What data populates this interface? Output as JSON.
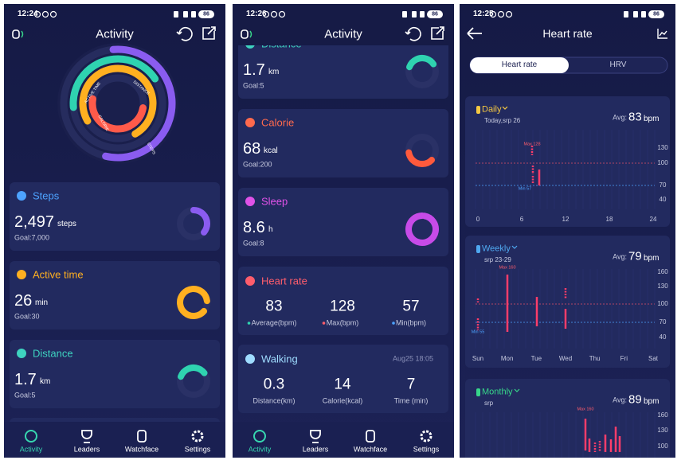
{
  "screens": [
    {
      "time": "12:24",
      "battery": "86",
      "title": "Activity",
      "rings": [
        "DISTANCE",
        "ACTIVE TIME",
        "CALORIE",
        "STEPS"
      ],
      "cards": [
        {
          "title": "Steps",
          "value": "2,497",
          "unit": "steps",
          "goal": "Goal:7,000"
        },
        {
          "title": "Active time",
          "value": "26",
          "unit": "min",
          "goal": "Goal:30"
        },
        {
          "title": "Distance",
          "value": "1.7",
          "unit": "km",
          "goal": "Goal:5"
        }
      ],
      "nav": [
        "Activity",
        "Leaders",
        "Watchface",
        "Settings"
      ]
    },
    {
      "time": "12:26",
      "battery": "86",
      "title": "Activity",
      "cards": [
        {
          "title": "Distance",
          "value": "1.7",
          "unit": "km",
          "goal": "Goal:5"
        },
        {
          "title": "Calorie",
          "value": "68",
          "unit": "kcal",
          "goal": "Goal:200"
        },
        {
          "title": "Sleep",
          "value": "8.6",
          "unit": "h",
          "goal": "Goal:8"
        }
      ],
      "heart": {
        "title": "Heart rate",
        "stats": [
          {
            "value": "83",
            "label": "Average(bpm)"
          },
          {
            "value": "128",
            "label": "Max(bpm)"
          },
          {
            "value": "57",
            "label": "Min(bpm)"
          }
        ]
      },
      "walking": {
        "title": "Walking",
        "date": "Aug25 18:05",
        "stats": [
          {
            "value": "0.3",
            "label": "Distance(km)"
          },
          {
            "value": "14",
            "label": "Calorie(kcal)"
          },
          {
            "value": "7",
            "label": "Time (min)"
          }
        ]
      },
      "nav": [
        "Activity",
        "Leaders",
        "Watchface",
        "Settings"
      ]
    },
    {
      "time": "12:25",
      "battery": "86",
      "title": "Heart rate",
      "tabs": [
        "Heart rate",
        "HRV"
      ],
      "periods": [
        {
          "name": "Daily",
          "range": "Today,srp 26",
          "avg_label": "Avg:",
          "avg": "83",
          "unit": "bpm",
          "yticks": [
            "130",
            "100",
            "70",
            "40"
          ],
          "xticks": [
            "0",
            "6",
            "12",
            "18",
            "24"
          ],
          "max": "Max 128",
          "min": "Min 57"
        },
        {
          "name": "Weekly",
          "range": "srp 23-29",
          "avg_label": "Avg:",
          "avg": "79",
          "unit": "bpm",
          "yticks": [
            "160",
            "130",
            "100",
            "70",
            "40"
          ],
          "xticks": [
            "Sun",
            "Mon",
            "Tue",
            "Wed",
            "Thu",
            "Fri",
            "Sat"
          ],
          "max": "Max 160",
          "min": "Min 55"
        },
        {
          "name": "Monthly",
          "range": "srp",
          "avg_label": "Avg:",
          "avg": "89",
          "unit": "bpm",
          "yticks": [
            "160",
            "130",
            "100"
          ],
          "max": "Max 160"
        }
      ]
    }
  ]
}
